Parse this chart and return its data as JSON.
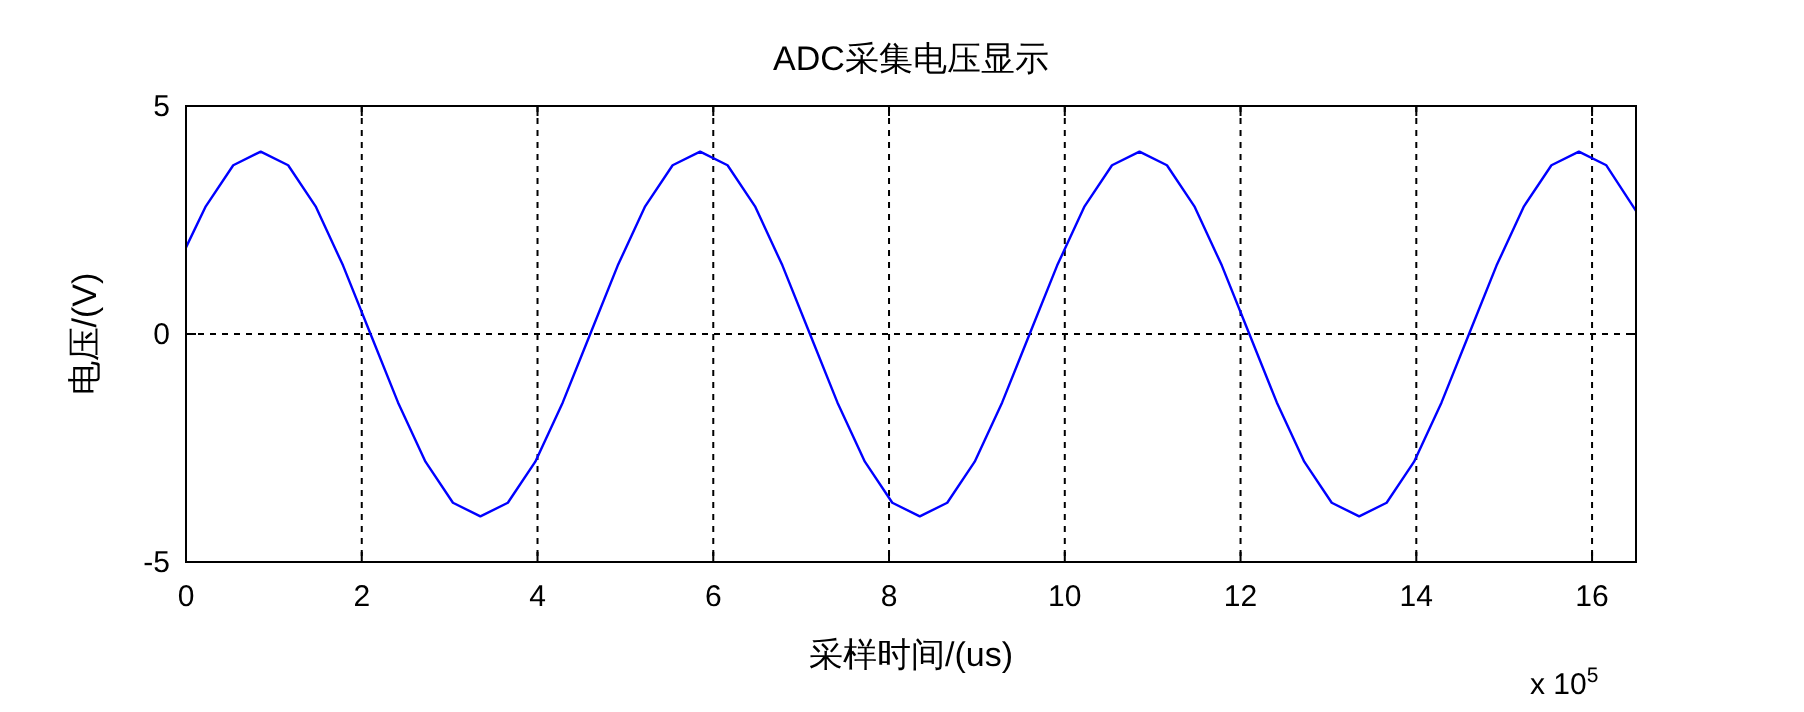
{
  "chart_data": {
    "type": "line",
    "title": "ADC采集电压显示",
    "xlabel": "采样时间/(us)",
    "ylabel": "电压/(V)",
    "annotations": [
      "x 10$^{5}$"
    ],
    "x": [
      0,
      0.225,
      0.5375,
      0.85,
      1.1625,
      1.475,
      1.7875,
      2.1,
      2.4125,
      2.725,
      3.0375,
      3.35,
      3.6625,
      3.975,
      4.2875,
      4.6,
      4.9125,
      5.225,
      5.5375,
      5.85,
      6.1625,
      6.475,
      6.7875,
      7.1,
      7.4125,
      7.725,
      8.0375,
      8.35,
      8.6625,
      8.975,
      9.2875,
      9.6,
      9.9125,
      10.225,
      10.5375,
      10.85,
      11.1625,
      11.475,
      11.7875,
      12.1,
      12.4125,
      12.725,
      13.0375,
      13.35,
      13.6625,
      13.975,
      14.2875,
      14.6,
      14.9125,
      15.225,
      15.5375,
      15.85,
      16.1625,
      16.5
    ],
    "series": [
      {
        "color": "#0000ff",
        "values": [
          1.9,
          2.8,
          3.7,
          4,
          3.7,
          2.8,
          1.5,
          0,
          -1.5,
          -2.8,
          -3.7,
          -4,
          -3.7,
          -2.8,
          -1.5,
          0,
          1.5,
          2.8,
          3.7,
          4,
          3.7,
          2.8,
          1.5,
          0,
          -1.5,
          -2.8,
          -3.7,
          -4,
          -3.7,
          -2.8,
          -1.5,
          0,
          1.5,
          2.8,
          3.7,
          4,
          3.7,
          2.8,
          1.5,
          0,
          -1.5,
          -2.8,
          -3.7,
          -4,
          -3.7,
          -2.8,
          -1.5,
          0,
          1.5,
          2.8,
          3.7,
          4,
          3.7,
          2.7
        ]
      }
    ],
    "xlim": [
      0,
      16.5
    ],
    "ylim": [
      -5,
      5
    ],
    "xticks": [
      0,
      2,
      4,
      6,
      8,
      10,
      12,
      14,
      16
    ],
    "yticks": [
      -5,
      0,
      5
    ],
    "grid": true
  }
}
